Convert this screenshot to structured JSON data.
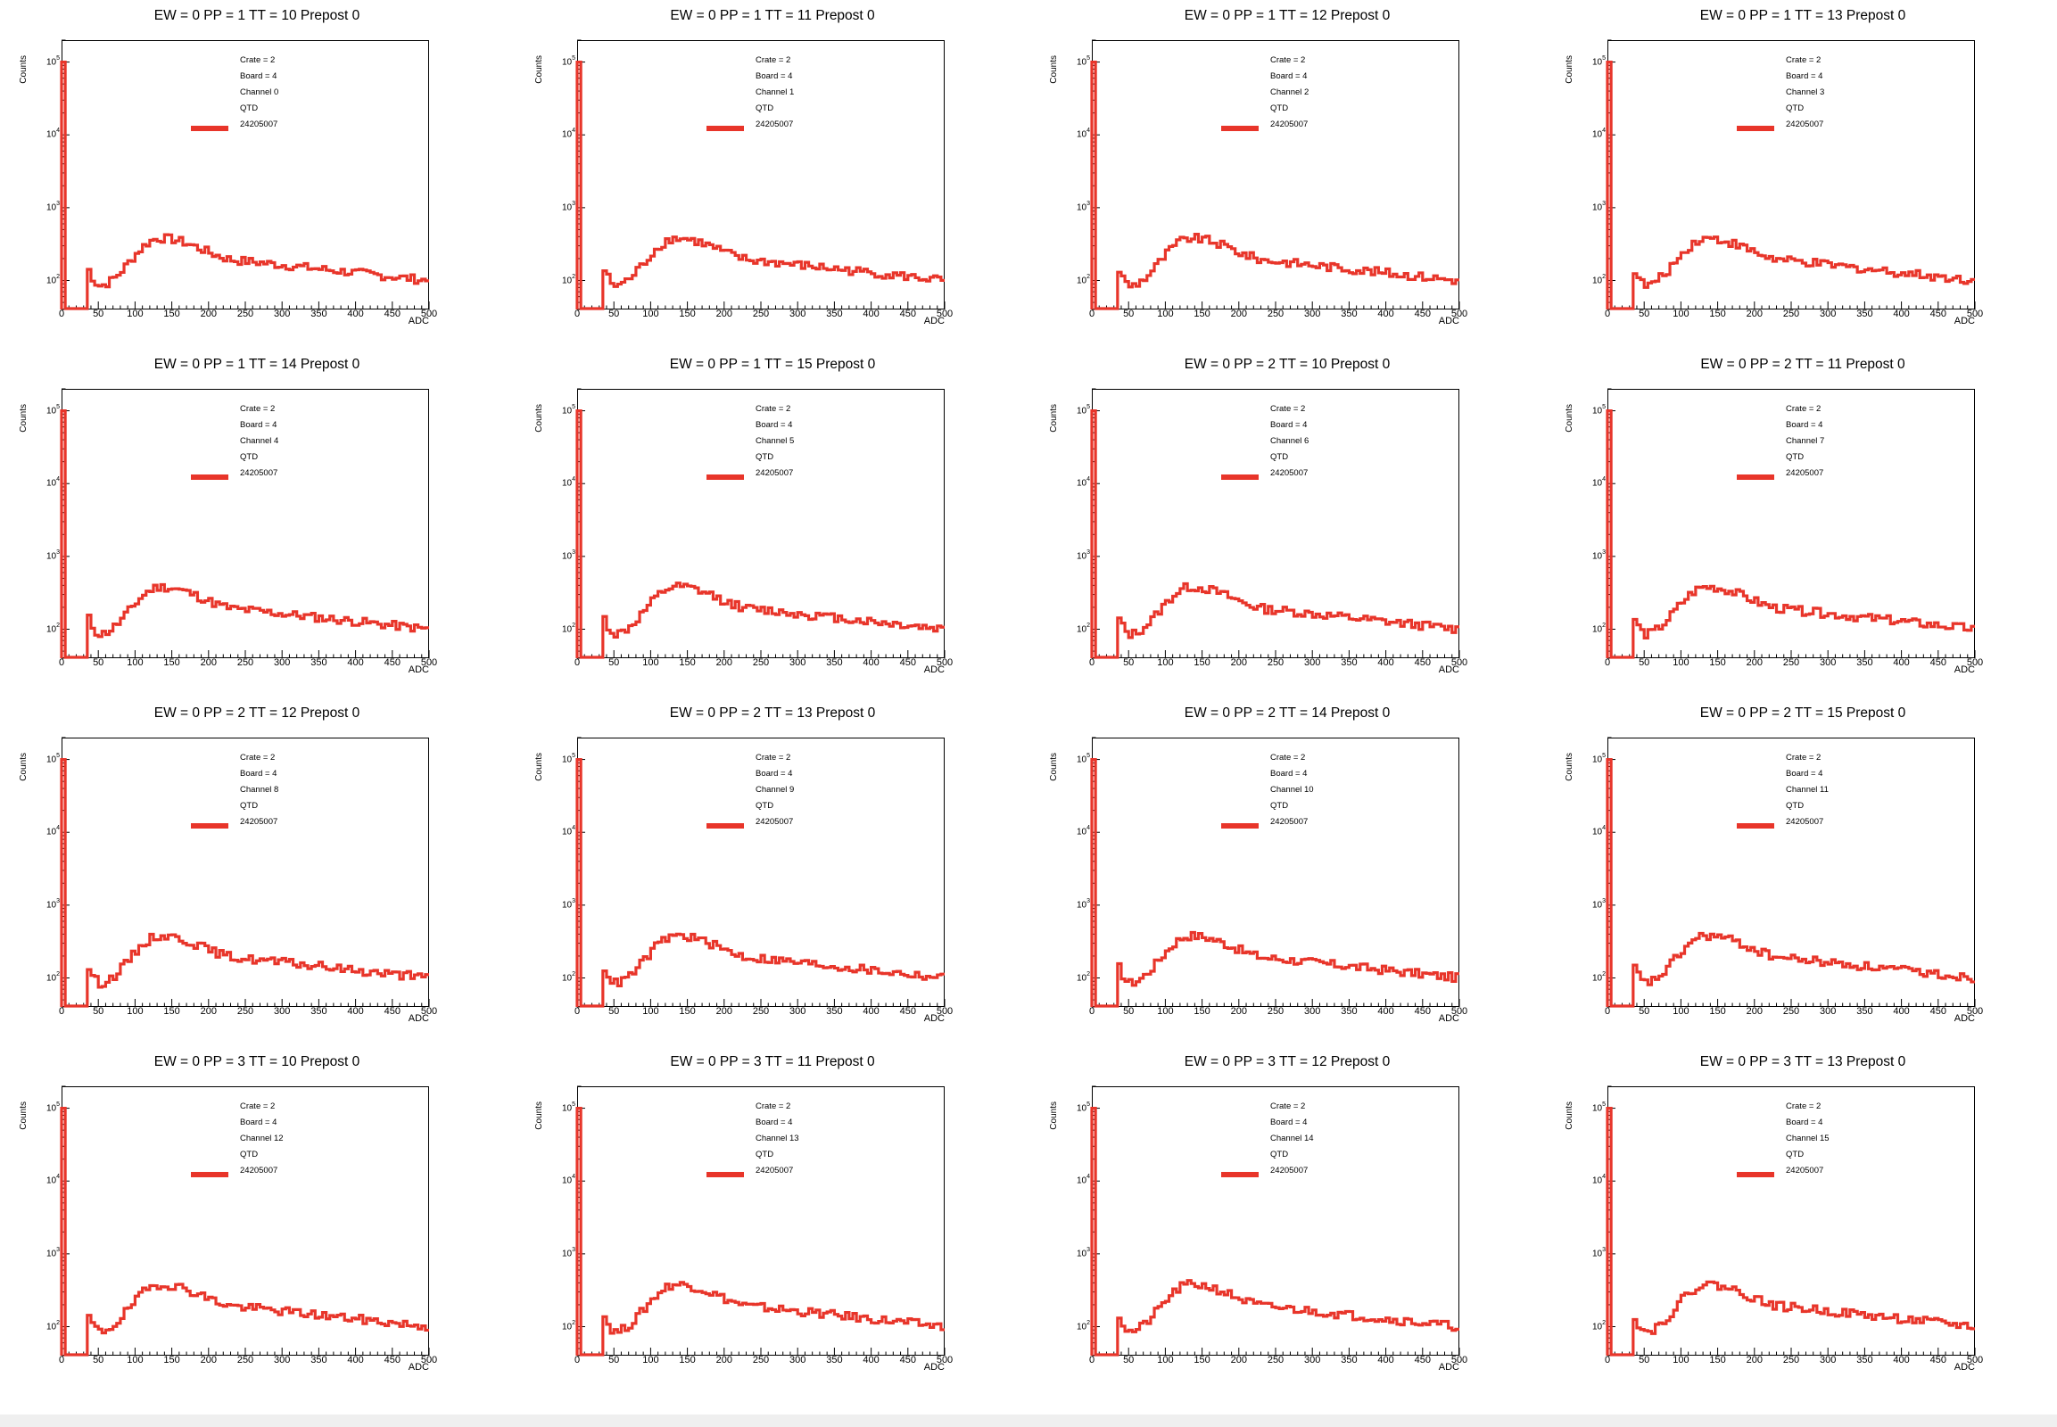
{
  "chart_data": {
    "type": "histogram-grid",
    "rows": 4,
    "cols": 4,
    "yscale": "log",
    "xlim": [
      0,
      500
    ],
    "ylim": [
      40,
      200000
    ],
    "xticks": [
      0,
      50,
      100,
      150,
      200,
      250,
      300,
      350,
      400,
      450,
      500
    ],
    "xlabel": "ADC",
    "ylabel": "Counts",
    "yticks": [
      {
        "base": "10",
        "exp": "2",
        "value": 100
      },
      {
        "base": "10",
        "exp": "3",
        "value": 1000
      },
      {
        "base": "10",
        "exp": "4",
        "value": 10000
      },
      {
        "base": "10",
        "exp": "5",
        "value": 100000
      }
    ],
    "line_color": "#e8352a",
    "legend_series": "24205007",
    "legend_crate": "Crate = 2",
    "legend_board": "Board = 4",
    "legend_detector": "QTD",
    "shape": {
      "zero_bin_range": [
        0,
        5
      ],
      "zero_bin_value": 100000,
      "pedestal_gap": [
        5,
        35
      ],
      "gap_value": 40,
      "threshold_x": 35,
      "threshold_value": 140,
      "dip_x": 50,
      "dip_value": 85,
      "peak_x": 135,
      "peak_value": 380,
      "shoulder_x": 250,
      "shoulder_value": 185,
      "end_x": 500,
      "end_value": 100,
      "bin_width": 5
    },
    "panels": [
      {
        "title": "EW = 0 PP = 1 TT = 10 Prepost 0",
        "channel": "Channel 0"
      },
      {
        "title": "EW = 0 PP = 1 TT = 11 Prepost 0",
        "channel": "Channel 1"
      },
      {
        "title": "EW = 0 PP = 1 TT = 12 Prepost 0",
        "channel": "Channel 2"
      },
      {
        "title": "EW = 0 PP = 1 TT = 13 Prepost 0",
        "channel": "Channel 3"
      },
      {
        "title": "EW = 0 PP = 1 TT = 14 Prepost 0",
        "channel": "Channel 4"
      },
      {
        "title": "EW = 0 PP = 1 TT = 15 Prepost 0",
        "channel": "Channel 5"
      },
      {
        "title": "EW = 0 PP = 2 TT = 10 Prepost 0",
        "channel": "Channel 6"
      },
      {
        "title": "EW = 0 PP = 2 TT = 11 Prepost 0",
        "channel": "Channel 7"
      },
      {
        "title": "EW = 0 PP = 2 TT = 12 Prepost 0",
        "channel": "Channel 8"
      },
      {
        "title": "EW = 0 PP = 2 TT = 13 Prepost 0",
        "channel": "Channel 9"
      },
      {
        "title": "EW = 0 PP = 2 TT = 14 Prepost 0",
        "channel": "Channel 10"
      },
      {
        "title": "EW = 0 PP = 2 TT = 15 Prepost 0",
        "channel": "Channel 11"
      },
      {
        "title": "EW = 0 PP = 3 TT = 10 Prepost 0",
        "channel": "Channel 12"
      },
      {
        "title": "EW = 0 PP = 3 TT = 11 Prepost 0",
        "channel": "Channel 13"
      },
      {
        "title": "EW = 0 PP = 3 TT = 12 Prepost 0",
        "channel": "Channel 14"
      },
      {
        "title": "EW = 0 PP = 3 TT = 13 Prepost 0",
        "channel": "Channel 15"
      }
    ]
  }
}
